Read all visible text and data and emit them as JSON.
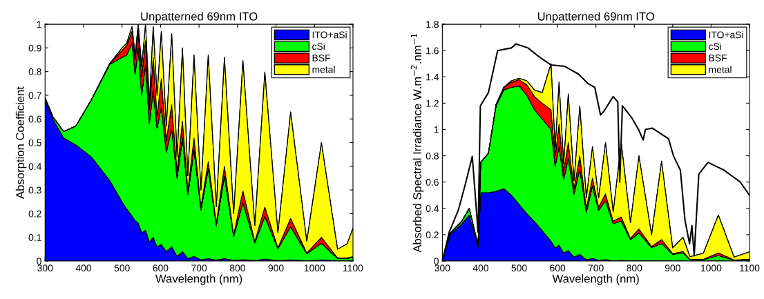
{
  "chart_data": [
    {
      "type": "area",
      "title": "Unpatterned 69nm ITO",
      "xlabel": "Wavelength (nm)",
      "ylabel": "Absorption Coefficient",
      "stacked": true,
      "legend": "top right",
      "grid": false,
      "x": [
        300,
        320,
        348,
        380,
        420,
        468,
        500,
        512,
        526,
        534,
        542,
        551,
        561,
        571,
        581,
        591,
        602,
        615,
        629,
        643,
        657,
        671,
        687,
        705,
        724,
        745,
        766,
        790,
        814,
        845,
        871,
        905,
        938,
        980,
        1018,
        1060,
        1085,
        1100
      ],
      "xlim": [
        300,
        1100
      ],
      "xticks": [
        300,
        400,
        500,
        600,
        700,
        800,
        900,
        1000,
        1100
      ],
      "ylim": [
        0,
        1
      ],
      "yticks": [
        0,
        0.1,
        0.2,
        0.3,
        0.4,
        0.5,
        0.6,
        0.7,
        0.8,
        0.9,
        1
      ],
      "series": [
        {
          "name": "ITO+aSi",
          "color": "#0000ff",
          "values": [
            0.68,
            0.6,
            0.52,
            0.49,
            0.44,
            0.34,
            0.25,
            0.22,
            0.19,
            0.17,
            0.16,
            0.12,
            0.13,
            0.08,
            0.1,
            0.06,
            0.07,
            0.04,
            0.06,
            0.02,
            0.04,
            0.01,
            0.02,
            0.005,
            0.01,
            0.004,
            0.01,
            0.003,
            0.006,
            0.002,
            0.008,
            0.002,
            0.005,
            0.001,
            0.005,
            0.001,
            0.001,
            0.001
          ]
        },
        {
          "name": "cSi",
          "color": "#00ff00",
          "values": [
            0.01,
            0.01,
            0.027,
            0.08,
            0.24,
            0.49,
            0.61,
            0.65,
            0.73,
            0.62,
            0.74,
            0.58,
            0.7,
            0.5,
            0.62,
            0.5,
            0.58,
            0.42,
            0.5,
            0.33,
            0.48,
            0.27,
            0.45,
            0.21,
            0.38,
            0.145,
            0.35,
            0.1,
            0.24,
            0.075,
            0.18,
            0.05,
            0.14,
            0.03,
            0.07,
            0.01,
            0.01,
            0.015
          ]
        },
        {
          "name": "BSF",
          "color": "#ff0000",
          "values": [
            0,
            0,
            0,
            0,
            0,
            0.004,
            0.03,
            0.04,
            0.05,
            0.06,
            0.07,
            0.08,
            0.1,
            0.06,
            0.14,
            0.05,
            0.12,
            0.05,
            0.1,
            0.03,
            0.07,
            0.02,
            0.05,
            0.015,
            0.03,
            0.011,
            0.04,
            0.007,
            0.05,
            0.005,
            0.04,
            0.004,
            0.035,
            0.003,
            0.025,
            0.002,
            0.002,
            0.003
          ]
        },
        {
          "name": "metal",
          "color": "#ffff00",
          "values": [
            0,
            0,
            0,
            0,
            0,
            0,
            0.01,
            0.01,
            0.02,
            0.02,
            0.03,
            0.04,
            0.07,
            0.03,
            0.13,
            0.09,
            0.2,
            0.06,
            0.3,
            0.06,
            0.31,
            0.06,
            0.35,
            0.07,
            0.45,
            0.07,
            0.46,
            0.09,
            0.55,
            0.068,
            0.57,
            0.064,
            0.45,
            0.05,
            0.4,
            0.037,
            0.06,
            0.12
          ]
        }
      ]
    },
    {
      "type": "area",
      "title": "Unpatterned 69nm ITO",
      "xlabel": "Wavelength (nm)",
      "ylabel": "Absorbed Spectral Irradiance W.m$^{−2}$.nm$^{−1}$",
      "stacked": true,
      "legend": "top right",
      "grid": false,
      "x": [
        300,
        320,
        350,
        370,
        393,
        400,
        420,
        440,
        460,
        480,
        500,
        520,
        540,
        560,
        583,
        594,
        604,
        616,
        628,
        643,
        658,
        675,
        691,
        707,
        725,
        745,
        766,
        790,
        812,
        845,
        871,
        900,
        927,
        945,
        980,
        1019,
        1060,
        1100
      ],
      "xlim": [
        300,
        1100
      ],
      "xticks": [
        300,
        400,
        500,
        600,
        700,
        800,
        900,
        1000,
        1100
      ],
      "ylim": [
        0,
        1.8
      ],
      "yticks": [
        0,
        0.2,
        0.4,
        0.6,
        0.8,
        1,
        1.2,
        1.4,
        1.6,
        1.8
      ],
      "series": [
        {
          "name": "ITO+aSi",
          "color": "#0000ff",
          "values": [
            0,
            0.2,
            0.28,
            0.35,
            0.1,
            0.52,
            0.52,
            0.53,
            0.55,
            0.5,
            0.43,
            0.36,
            0.3,
            0.23,
            0.15,
            0.1,
            0.12,
            0.06,
            0.08,
            0.03,
            0.05,
            0.01,
            0.02,
            0.005,
            0.01,
            0.003,
            0.005,
            0.002,
            0.004,
            0.002,
            0.003,
            0.001,
            0.002,
            0.001,
            0.001,
            0.002,
            0.001,
            0.001
          ]
        },
        {
          "name": "cSi",
          "color": "#00ff00",
          "values": [
            0,
            0.01,
            0.02,
            0.05,
            0.02,
            0.23,
            0.3,
            0.65,
            0.75,
            0.82,
            0.9,
            0.9,
            0.85,
            0.85,
            0.85,
            0.62,
            0.75,
            0.56,
            0.7,
            0.48,
            0.65,
            0.36,
            0.55,
            0.38,
            0.45,
            0.28,
            0.3,
            0.16,
            0.21,
            0.1,
            0.13,
            0.05,
            0.06,
            0.01,
            0.01,
            0.04,
            0.005,
            0.01
          ]
        },
        {
          "name": "BSF",
          "color": "#ff0000",
          "values": [
            0,
            0,
            0,
            0,
            0,
            0,
            0,
            0.01,
            0.02,
            0.04,
            0.05,
            0.08,
            0.1,
            0.12,
            0.15,
            0.08,
            0.17,
            0.06,
            0.12,
            0.04,
            0.1,
            0.03,
            0.06,
            0.025,
            0.05,
            0.02,
            0.03,
            0.01,
            0.03,
            0.008,
            0.03,
            0.005,
            0.01,
            0.002,
            0.002,
            0.02,
            0.002,
            0.003
          ]
        },
        {
          "name": "metal",
          "color": "#ffff00",
          "values": [
            0,
            0,
            0,
            0,
            0,
            0,
            0,
            0,
            0,
            0.01,
            0.01,
            0.03,
            0.05,
            0.08,
            0.35,
            0.06,
            0.32,
            0.06,
            0.37,
            0.06,
            0.38,
            0.08,
            0.24,
            0.07,
            0.39,
            0.07,
            0.565,
            0.12,
            0.556,
            0.09,
            0.597,
            0.044,
            0.108,
            0.02,
            0.047,
            0.288,
            0.022,
            0.056
          ]
        },
        {
          "type": "line",
          "color": "#000000",
          "x": [
            300,
            318,
            342,
            360,
            378,
            393,
            399,
            420,
            444,
            480,
            492,
            523,
            553,
            583,
            619,
            655,
            679,
            697,
            712,
            721,
            745,
            757,
            762,
            769,
            793,
            811,
            823,
            829,
            847,
            889,
            902,
            920,
            932,
            944,
            950,
            956,
            968,
            992,
            1034,
            1076,
            1100
          ],
          "values": [
            0,
            0.22,
            0.39,
            0.585,
            0.795,
            0.22,
            1.18,
            1.28,
            1.6,
            1.62,
            1.65,
            1.62,
            1.55,
            1.49,
            1.48,
            1.42,
            1.35,
            1.32,
            1.11,
            1.14,
            1.25,
            1.21,
            0.6,
            1.18,
            1.09,
            1.0,
            0.92,
            1.0,
            1.01,
            0.93,
            0.8,
            0.69,
            0.31,
            0.13,
            0.27,
            0.04,
            0.66,
            0.75,
            0.69,
            0.6,
            0.5
          ]
        }
      ]
    }
  ]
}
